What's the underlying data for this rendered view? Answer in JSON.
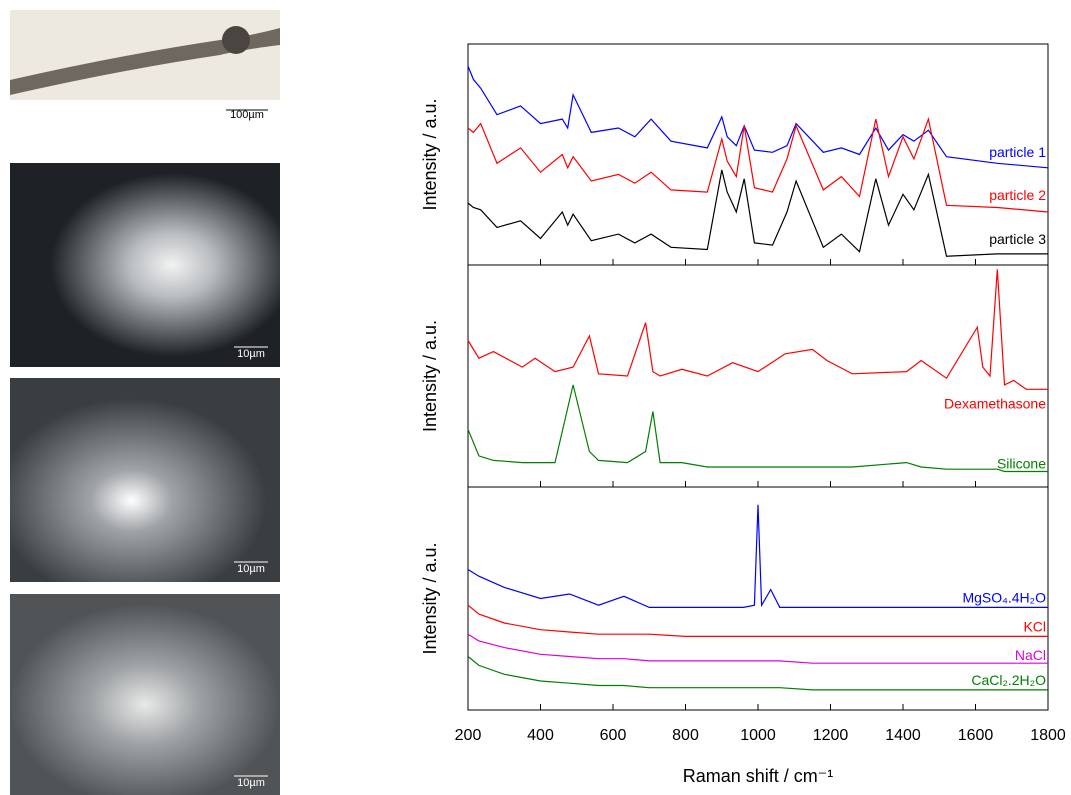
{
  "images": [
    {
      "scale_label": "100µm"
    },
    {
      "scale_label": "10µm"
    },
    {
      "scale_label": "10µm"
    },
    {
      "scale_label": "10µm"
    }
  ],
  "chart_data": [
    {
      "type": "line",
      "ylabel": "Intensity / a.u.",
      "xlim": [
        200,
        1800
      ],
      "ylim": [
        0,
        100
      ],
      "x": [
        200,
        215,
        235,
        280,
        345,
        400,
        460,
        475,
        490,
        540,
        615,
        660,
        705,
        760,
        860,
        900,
        915,
        940,
        962,
        990,
        1040,
        1080,
        1105,
        1180,
        1230,
        1280,
        1325,
        1360,
        1400,
        1430,
        1470,
        1520,
        1660,
        1800
      ],
      "series": [
        {
          "name": "particle 1",
          "color": "#0000ff",
          "values": [
            90,
            84,
            80,
            68,
            72,
            64,
            66,
            62,
            77,
            60,
            62,
            58,
            66,
            56,
            53,
            67,
            58,
            54,
            63,
            52,
            51,
            54,
            64,
            51,
            53,
            50,
            62,
            52,
            59,
            56,
            61,
            49,
            46,
            44
          ]
        },
        {
          "name": "particle 2",
          "color": "#ff0000",
          "values": [
            62,
            60,
            64,
            46,
            53,
            42,
            50,
            44,
            49,
            38,
            41,
            37,
            42,
            34,
            33,
            57,
            47,
            40,
            63,
            35,
            33,
            48,
            63,
            34,
            40,
            31,
            66,
            40,
            58,
            48,
            66,
            27,
            26,
            24
          ]
        },
        {
          "name": "particle 3",
          "color": "#000000",
          "values": [
            28,
            26,
            25,
            17,
            20,
            12,
            24,
            18,
            23,
            11,
            14,
            10,
            14,
            8,
            7,
            43,
            33,
            24,
            39,
            10,
            9,
            24,
            38,
            8,
            14,
            6,
            39,
            18,
            32,
            25,
            41,
            4,
            5,
            5
          ]
        }
      ]
    },
    {
      "type": "line",
      "ylabel": "Intensity / a.u.",
      "xlim": [
        200,
        1800
      ],
      "ylim": [
        0,
        100
      ],
      "x": [
        200,
        230,
        270,
        350,
        385,
        440,
        490,
        535,
        560,
        640,
        690,
        710,
        730,
        790,
        860,
        930,
        1000,
        1075,
        1150,
        1190,
        1260,
        1410,
        1450,
        1520,
        1605,
        1620,
        1640,
        1660,
        1680,
        1705,
        1740,
        1800
      ],
      "series": [
        {
          "name": "Dexamethasone",
          "color": "#ff0000",
          "values": [
            66,
            58,
            61,
            54,
            58,
            52,
            54,
            68,
            51,
            50,
            74,
            52,
            50,
            53,
            50,
            56,
            52,
            60,
            62,
            57,
            51,
            52,
            57,
            49,
            72,
            54,
            50,
            98,
            46,
            48,
            44,
            44
          ]
        },
        {
          "name": "Silicone",
          "color": "#007f00",
          "values": [
            26,
            14,
            12,
            11,
            11,
            11,
            46,
            16,
            12,
            11,
            16,
            34,
            11,
            11,
            9,
            9,
            9,
            9,
            9,
            9,
            9,
            11,
            9,
            8,
            8,
            8,
            8,
            8,
            7,
            7,
            7,
            7
          ]
        }
      ]
    },
    {
      "type": "line",
      "ylabel": "Intensity / a.u.",
      "xlabel": "Raman shift / cm⁻¹",
      "xlim": [
        200,
        1800
      ],
      "ylim": [
        0,
        100
      ],
      "xticks": [
        200,
        400,
        600,
        800,
        1000,
        1200,
        1400,
        1600,
        1800
      ],
      "x": [
        200,
        230,
        300,
        400,
        480,
        560,
        630,
        700,
        800,
        960,
        990,
        1000,
        1010,
        1035,
        1060,
        1150,
        1300,
        1500,
        1800
      ],
      "series": [
        {
          "name": "MgSO₄.4H₂O",
          "color": "#0000ff",
          "values": [
            63,
            60,
            55,
            50,
            52,
            47,
            51,
            46,
            46,
            46,
            47,
            92,
            47,
            54,
            46,
            46,
            46,
            46,
            46
          ]
        },
        {
          "name": "KCl",
          "color": "#ff0000",
          "values": [
            47,
            43,
            39,
            36,
            35,
            34,
            34,
            34,
            33,
            33,
            33,
            33,
            33,
            33,
            33,
            33,
            33,
            33,
            33
          ]
        },
        {
          "name": "NaCl",
          "color": "#dd00dd",
          "values": [
            34,
            31,
            28,
            25,
            24,
            23,
            23,
            22,
            22,
            22,
            22,
            22,
            22,
            22,
            22,
            21,
            21,
            21,
            21
          ]
        },
        {
          "name": "CaCl₂.2H₂O",
          "color": "#007f00",
          "values": [
            24,
            20,
            16,
            13,
            12,
            11,
            11,
            10,
            10,
            10,
            10,
            10,
            10,
            10,
            10,
            9,
            9,
            9,
            9
          ]
        }
      ]
    }
  ]
}
